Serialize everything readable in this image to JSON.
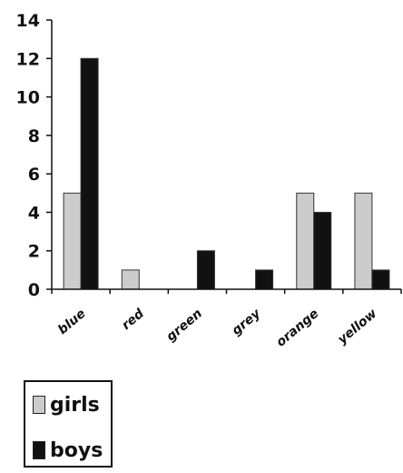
{
  "chart_data": {
    "type": "bar",
    "categories": [
      "blue",
      "red",
      "green",
      "grey",
      "orange",
      "yellow"
    ],
    "series": [
      {
        "name": "girls",
        "values": [
          5,
          1,
          0,
          0,
          5,
          5
        ],
        "color": "#cccccc"
      },
      {
        "name": "boys",
        "values": [
          12,
          0,
          2,
          1,
          4,
          1
        ],
        "color": "#111111"
      }
    ],
    "ylim": [
      0,
      14
    ],
    "yticks": [
      0,
      2,
      4,
      6,
      8,
      10,
      12,
      14
    ],
    "title": "",
    "xlabel": "",
    "ylabel": "",
    "grid": false,
    "legend": "bottom-left"
  },
  "legend": {
    "girls_label": "girls",
    "boys_label": "boys"
  }
}
